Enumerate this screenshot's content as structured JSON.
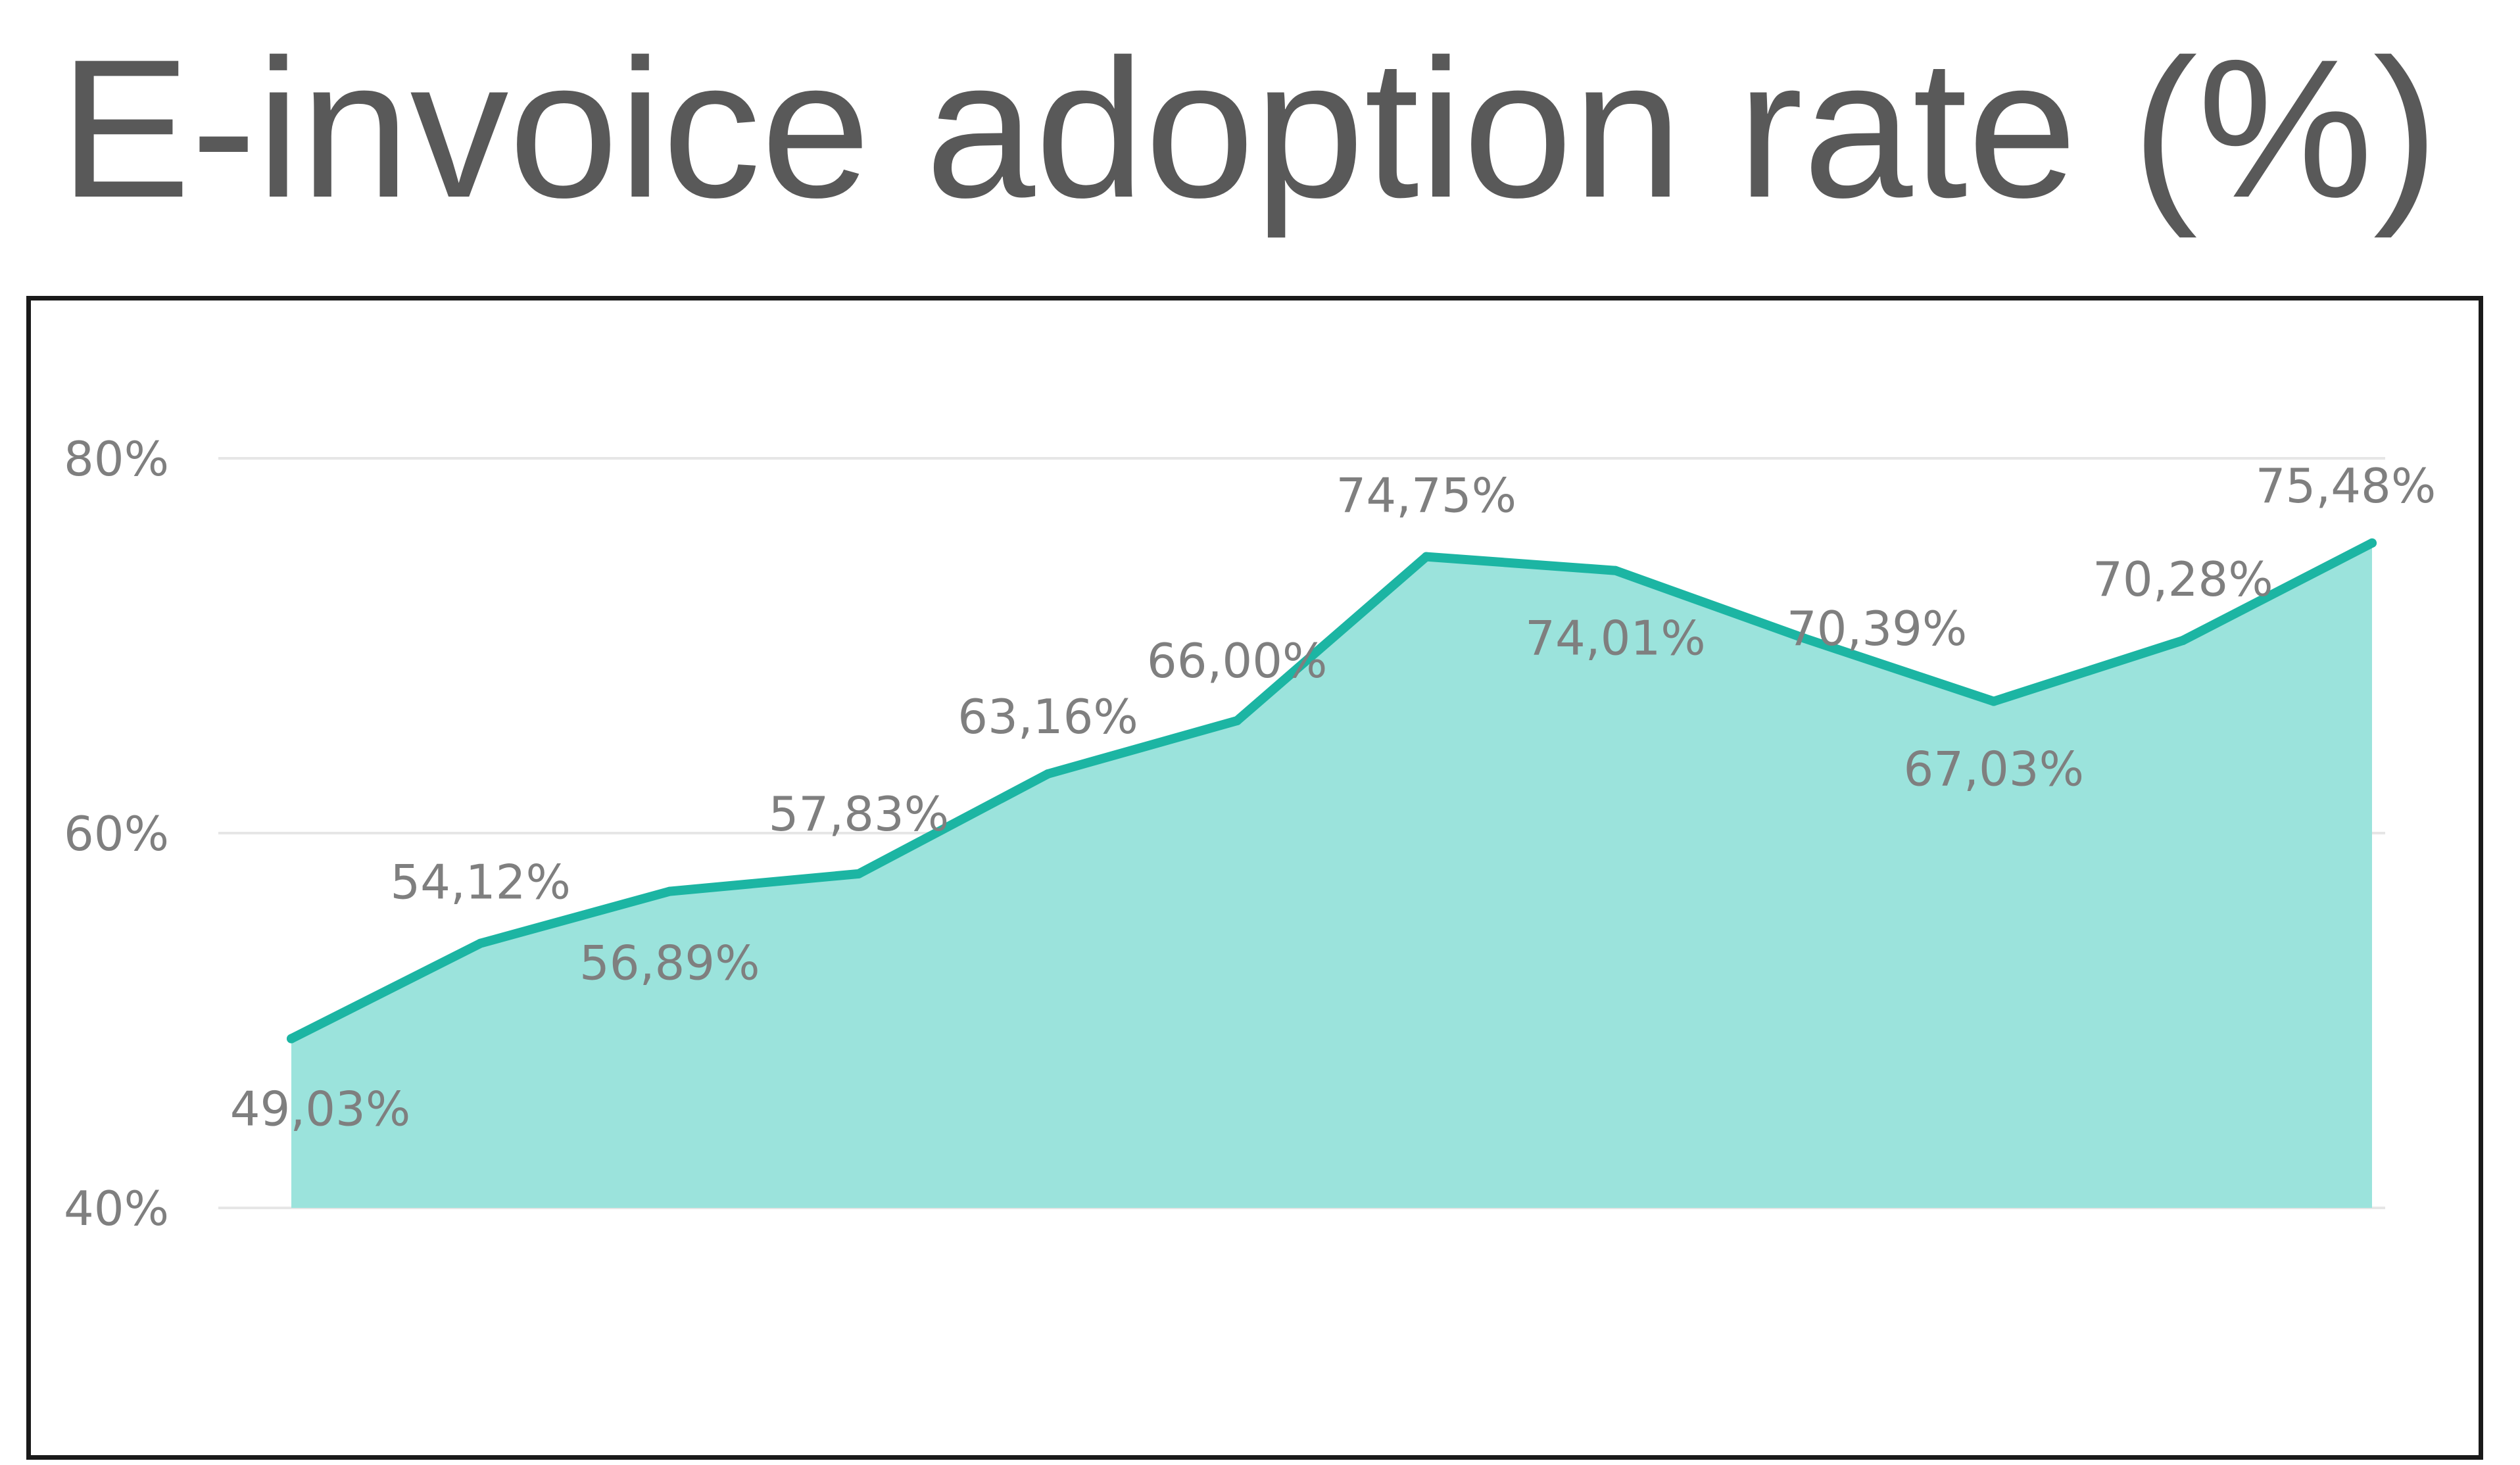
{
  "chart_data": {
    "type": "area",
    "title": "E-invoice adoption rate (%)",
    "xlabel": "",
    "ylabel": "",
    "x": [
      1,
      2,
      3,
      4,
      5,
      6,
      7,
      8,
      9,
      10,
      11,
      12
    ],
    "ylim": [
      40,
      80
    ],
    "yticks": [
      {
        "value": 40,
        "label": "40%"
      },
      {
        "value": 60,
        "label": "60%"
      },
      {
        "value": 80,
        "label": "80%"
      }
    ],
    "grid": true,
    "legend": "none",
    "series": [
      {
        "values": [
          49.03,
          54.12,
          56.89,
          57.83,
          63.16,
          66.0,
          74.75,
          74.01,
          70.39,
          67.03,
          70.28,
          75.48
        ],
        "labels": [
          "49,03%",
          "54,12%",
          "56,89%",
          "57,83%",
          "63,16%",
          "66,00%",
          "74,75%",
          "74,01%",
          "70,39%",
          "67,03%",
          "70,28%",
          "75,48%"
        ]
      }
    ],
    "colors": {
      "line": "#1cb5a3",
      "fill": "#9be3dc",
      "grid": "#e6e6e6",
      "text": "#7f7f7f"
    }
  }
}
